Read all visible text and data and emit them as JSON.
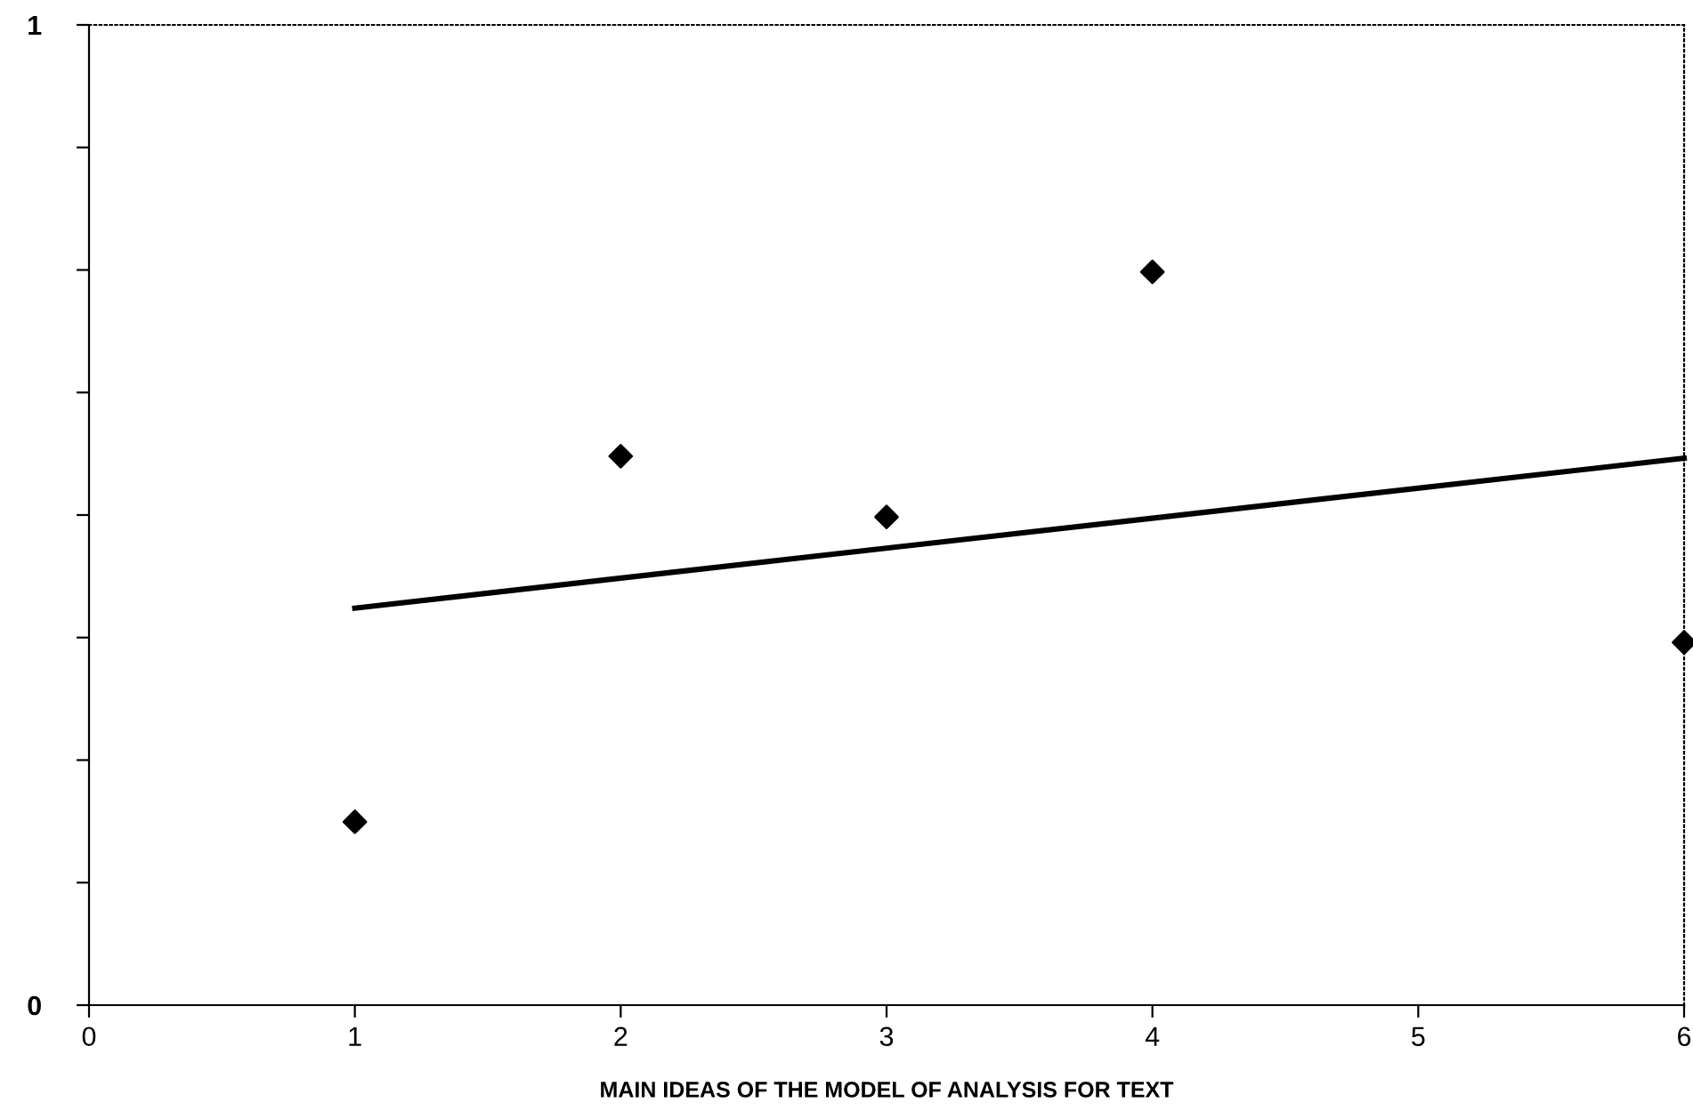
{
  "chart_data": {
    "type": "scatter",
    "xlabel": "MAIN IDEAS OF THE MODEL OF ANALYSIS FOR TEXT",
    "marker": "diamond",
    "grid": false,
    "legend": false,
    "series": [
      {
        "color": "#000000",
        "x": [
          1,
          2,
          3,
          4,
          6
        ],
        "values": [
          0.187,
          0.56,
          0.498,
          0.748,
          0.37
        ]
      },
      {
        "type": "line",
        "color": "#000000",
        "x": [
          1,
          6
        ],
        "values": [
          0.405,
          0.558
        ],
        "marker": "none",
        "line_style": "solid"
      }
    ],
    "xlim": [
      0,
      6
    ],
    "xticks": [
      0,
      1,
      2,
      3,
      4,
      5,
      6
    ],
    "ylim": [
      0,
      1
    ],
    "yticks": [
      0,
      {
        "value": 0.125,
        "label": null
      },
      {
        "value": 0.25,
        "label": null
      },
      {
        "value": 0.375,
        "label": null
      },
      {
        "value": 0.5,
        "label": null
      },
      {
        "value": 0.625,
        "label": null
      },
      {
        "value": 0.75,
        "label": null
      },
      {
        "value": 0.875,
        "label": null
      },
      1
    ]
  }
}
